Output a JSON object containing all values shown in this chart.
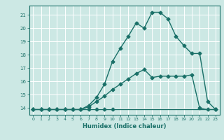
{
  "title": "",
  "xlabel": "Humidex (Indice chaleur)",
  "bg_color": "#cce8e4",
  "grid_color": "#ffffff",
  "line_color": "#1a7068",
  "xlim": [
    -0.5,
    23.5
  ],
  "ylim": [
    13.5,
    21.7
  ],
  "xticks": [
    0,
    1,
    2,
    3,
    4,
    5,
    6,
    7,
    8,
    9,
    10,
    11,
    12,
    13,
    14,
    15,
    16,
    17,
    18,
    19,
    20,
    21,
    22,
    23
  ],
  "yticks": [
    14,
    15,
    16,
    17,
    18,
    19,
    20,
    21
  ],
  "line1_x": [
    0,
    1,
    2,
    3,
    4,
    5,
    6,
    7,
    8,
    9,
    10,
    23
  ],
  "line1_y": [
    13.9,
    13.9,
    13.9,
    13.9,
    13.9,
    13.9,
    13.9,
    13.9,
    13.9,
    13.9,
    13.9,
    13.9
  ],
  "line2_x": [
    0,
    1,
    2,
    3,
    4,
    5,
    6,
    7,
    8,
    9,
    10,
    11,
    12,
    13,
    14,
    15,
    16,
    17,
    18,
    19,
    20,
    21,
    22,
    23
  ],
  "line2_y": [
    13.9,
    13.9,
    13.9,
    13.9,
    13.9,
    13.9,
    13.9,
    14.1,
    14.5,
    14.9,
    15.4,
    15.8,
    16.2,
    16.6,
    16.9,
    16.3,
    16.4,
    16.4,
    16.4,
    16.4,
    16.5,
    14.0,
    13.9,
    13.9
  ],
  "line3_x": [
    0,
    1,
    2,
    3,
    4,
    5,
    6,
    7,
    8,
    9,
    10,
    11,
    12,
    13,
    14,
    15,
    16,
    17,
    18,
    19,
    20,
    21,
    22,
    23
  ],
  "line3_y": [
    13.9,
    13.9,
    13.9,
    13.9,
    13.9,
    13.9,
    13.9,
    14.2,
    14.8,
    15.8,
    17.5,
    18.5,
    19.4,
    20.4,
    20.0,
    21.2,
    21.2,
    20.7,
    19.4,
    18.7,
    18.1,
    18.1,
    14.5,
    13.9
  ],
  "marker": "D",
  "markersize": 2.5,
  "linewidth": 1.0,
  "xlabel_fontsize": 6.0,
  "tick_fontsize": 5.0
}
